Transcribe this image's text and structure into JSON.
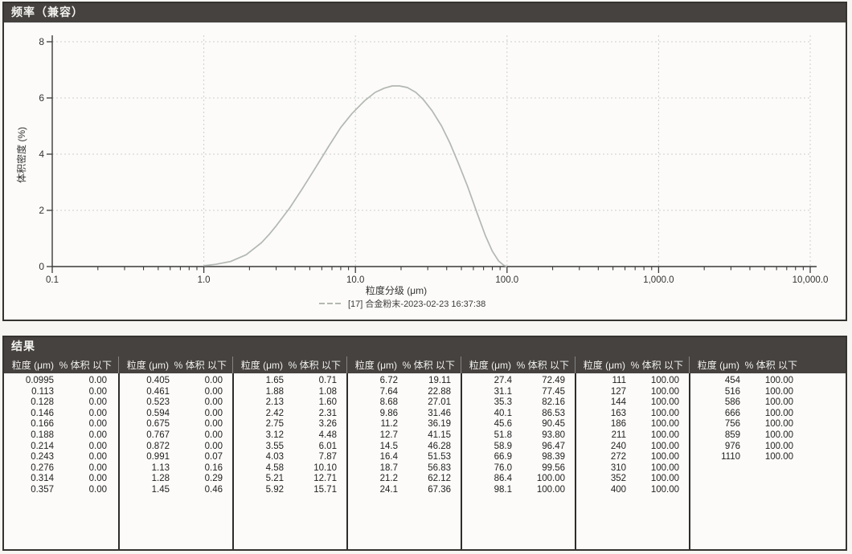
{
  "chart_panel": {
    "title": "频率（兼容）"
  },
  "chart_data": {
    "type": "line",
    "title": "频率（兼容）",
    "xlabel": "粒度分级 (μm)",
    "ylabel": "体积密度 (%)",
    "x_scale": "log",
    "xlim": [
      0.1,
      10000
    ],
    "ylim": [
      0,
      8
    ],
    "x_tick_labels": [
      "0.1",
      "1.0",
      "10.0",
      "100.0",
      "1,000.0",
      "10,000.0"
    ],
    "x_tick_values": [
      0.1,
      1,
      10,
      100,
      1000,
      10000
    ],
    "y_ticks": [
      0,
      2,
      4,
      6,
      8
    ],
    "grid": true,
    "legend_position": "bottom",
    "series": [
      {
        "name": "[17] 合金粉末-2023-02-23 16:37:38",
        "color": "#b2b8b2",
        "points": [
          [
            1.0,
            0.03
          ],
          [
            1.2,
            0.08
          ],
          [
            1.5,
            0.18
          ],
          [
            1.9,
            0.42
          ],
          [
            2.4,
            0.85
          ],
          [
            2.7,
            1.15
          ],
          [
            3.0,
            1.45
          ],
          [
            3.7,
            2.1
          ],
          [
            4.5,
            2.8
          ],
          [
            5.5,
            3.55
          ],
          [
            6.7,
            4.3
          ],
          [
            8.0,
            4.95
          ],
          [
            9.5,
            5.45
          ],
          [
            11.5,
            5.9
          ],
          [
            13.5,
            6.2
          ],
          [
            15.5,
            6.35
          ],
          [
            17.5,
            6.43
          ],
          [
            19.5,
            6.43
          ],
          [
            22,
            6.37
          ],
          [
            25,
            6.2
          ],
          [
            28,
            5.95
          ],
          [
            32,
            5.55
          ],
          [
            37,
            5.0
          ],
          [
            42,
            4.4
          ],
          [
            48,
            3.65
          ],
          [
            55,
            2.85
          ],
          [
            63,
            1.95
          ],
          [
            72,
            1.1
          ],
          [
            80,
            0.55
          ],
          [
            88,
            0.2
          ],
          [
            95,
            0.05
          ],
          [
            100,
            0.0
          ]
        ]
      }
    ]
  },
  "results": {
    "title": "结果",
    "col_headers": {
      "size": "粒度 (μm)",
      "pct": "% 体积 以下"
    },
    "columns": [
      {
        "rows": [
          [
            "0.0995",
            "0.00"
          ],
          [
            "0.113",
            "0.00"
          ],
          [
            "0.128",
            "0.00"
          ],
          [
            "0.146",
            "0.00"
          ],
          [
            "0.166",
            "0.00"
          ],
          [
            "0.188",
            "0.00"
          ],
          [
            "0.214",
            "0.00"
          ],
          [
            "0.243",
            "0.00"
          ],
          [
            "0.276",
            "0.00"
          ],
          [
            "0.314",
            "0.00"
          ],
          [
            "0.357",
            "0.00"
          ]
        ]
      },
      {
        "rows": [
          [
            "0.405",
            "0.00"
          ],
          [
            "0.461",
            "0.00"
          ],
          [
            "0.523",
            "0.00"
          ],
          [
            "0.594",
            "0.00"
          ],
          [
            "0.675",
            "0.00"
          ],
          [
            "0.767",
            "0.00"
          ],
          [
            "0.872",
            "0.00"
          ],
          [
            "0.991",
            "0.07"
          ],
          [
            "1.13",
            "0.16"
          ],
          [
            "1.28",
            "0.29"
          ],
          [
            "1.45",
            "0.46"
          ]
        ]
      },
      {
        "rows": [
          [
            "1.65",
            "0.71"
          ],
          [
            "1.88",
            "1.08"
          ],
          [
            "2.13",
            "1.60"
          ],
          [
            "2.42",
            "2.31"
          ],
          [
            "2.75",
            "3.26"
          ],
          [
            "3.12",
            "4.48"
          ],
          [
            "3.55",
            "6.01"
          ],
          [
            "4.03",
            "7.87"
          ],
          [
            "4.58",
            "10.10"
          ],
          [
            "5.21",
            "12.71"
          ],
          [
            "5.92",
            "15.71"
          ]
        ]
      },
      {
        "rows": [
          [
            "6.72",
            "19.11"
          ],
          [
            "7.64",
            "22.88"
          ],
          [
            "8.68",
            "27.01"
          ],
          [
            "9.86",
            "31.46"
          ],
          [
            "11.2",
            "36.19"
          ],
          [
            "12.7",
            "41.15"
          ],
          [
            "14.5",
            "46.28"
          ],
          [
            "16.4",
            "51.53"
          ],
          [
            "18.7",
            "56.83"
          ],
          [
            "21.2",
            "62.12"
          ],
          [
            "24.1",
            "67.36"
          ]
        ]
      },
      {
        "rows": [
          [
            "27.4",
            "72.49"
          ],
          [
            "31.1",
            "77.45"
          ],
          [
            "35.3",
            "82.16"
          ],
          [
            "40.1",
            "86.53"
          ],
          [
            "45.6",
            "90.45"
          ],
          [
            "51.8",
            "93.80"
          ],
          [
            "58.9",
            "96.47"
          ],
          [
            "66.9",
            "98.39"
          ],
          [
            "76.0",
            "99.56"
          ],
          [
            "86.4",
            "100.00"
          ],
          [
            "98.1",
            "100.00"
          ]
        ]
      },
      {
        "rows": [
          [
            "111",
            "100.00"
          ],
          [
            "127",
            "100.00"
          ],
          [
            "144",
            "100.00"
          ],
          [
            "163",
            "100.00"
          ],
          [
            "186",
            "100.00"
          ],
          [
            "211",
            "100.00"
          ],
          [
            "240",
            "100.00"
          ],
          [
            "272",
            "100.00"
          ],
          [
            "310",
            "100.00"
          ],
          [
            "352",
            "100.00"
          ],
          [
            "400",
            "100.00"
          ]
        ]
      },
      {
        "rows": [
          [
            "454",
            "100.00"
          ],
          [
            "516",
            "100.00"
          ],
          [
            "586",
            "100.00"
          ],
          [
            "666",
            "100.00"
          ],
          [
            "756",
            "100.00"
          ],
          [
            "859",
            "100.00"
          ],
          [
            "976",
            "100.00"
          ],
          [
            "1110",
            "100.00"
          ]
        ]
      }
    ]
  }
}
